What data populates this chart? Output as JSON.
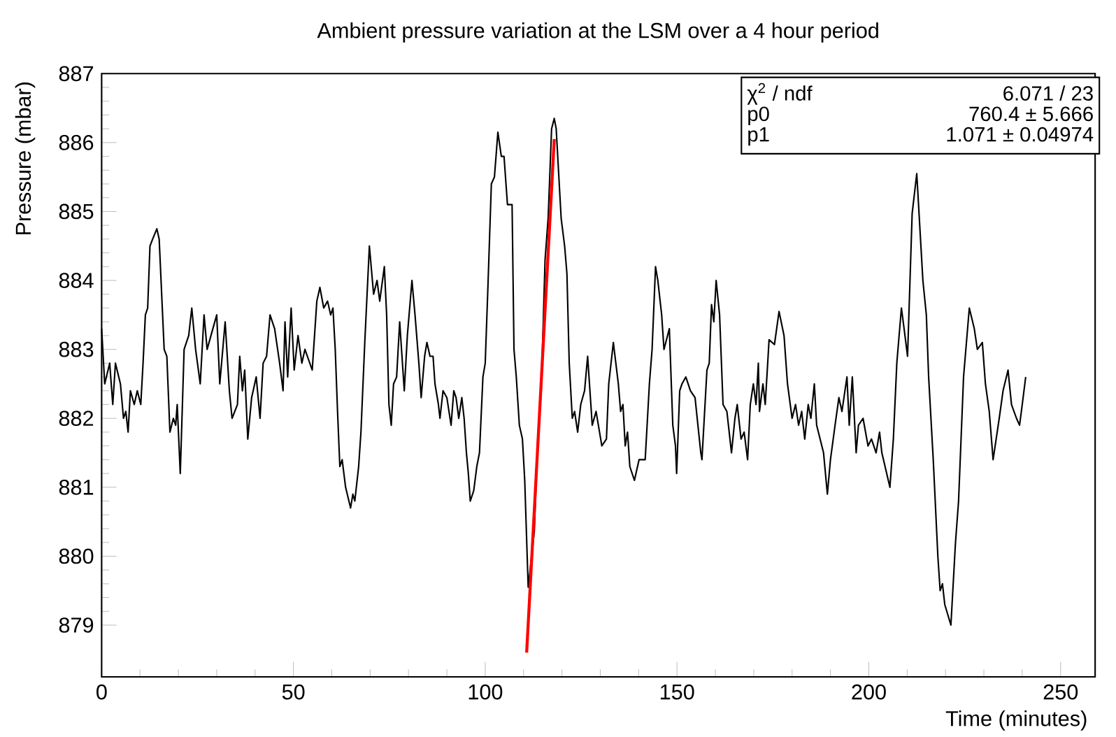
{
  "chart_data": {
    "type": "line",
    "title": "Ambient pressure variation at the LSM over a 4 hour period",
    "xlabel": "Time (minutes)",
    "ylabel": "Pressure (mbar)",
    "xlim": [
      0,
      259
    ],
    "ylim": [
      878.25,
      887
    ],
    "xticks": [
      0,
      50,
      100,
      150,
      200,
      250
    ],
    "yticks": [
      879,
      880,
      881,
      882,
      883,
      884,
      885,
      886,
      887
    ],
    "series": [
      {
        "color": "#000000",
        "x": [
          0.0,
          0.8,
          2.1,
          2.9,
          3.6,
          4.9,
          5.7,
          6.3,
          6.9,
          7.5,
          8.5,
          9.3,
          10.2,
          10.8,
          11.4,
          12.0,
          12.6,
          13.3,
          14.4,
          15.0,
          16.3,
          17.0,
          17.8,
          18.7,
          19.3,
          19.7,
          20.5,
          21.5,
          22.7,
          23.5,
          24.5,
          25.7,
          26.7,
          27.5,
          30.0,
          30.8,
          32.2,
          33.3,
          34.0,
          35.4,
          36.0,
          36.7,
          37.3,
          38.1,
          39.1,
          40.3,
          41.3,
          42.1,
          43.0,
          43.9,
          45.1,
          46.4,
          47.3,
          47.8,
          48.5,
          49.4,
          50.2,
          51.2,
          52.2,
          53.0,
          54.9,
          56.1,
          56.9,
          57.9,
          58.9,
          59.7,
          60.3,
          60.9,
          61.5,
          62.1,
          62.7,
          63.6,
          64.9,
          65.5,
          66.0,
          67.0,
          67.6,
          68.6,
          69.8,
          70.9,
          71.8,
          72.5,
          73.7,
          74.3,
          74.9,
          75.5,
          76.1,
          76.9,
          77.7,
          78.9,
          79.7,
          80.9,
          81.7,
          82.7,
          83.3,
          84.2,
          84.8,
          85.6,
          86.4,
          86.9,
          87.8,
          88.2,
          89.0,
          90.0,
          91.1,
          91.8,
          92.4,
          93.1,
          93.9,
          94.5,
          95.1,
          95.6,
          96.1,
          97.0,
          97.8,
          98.5,
          99.4,
          100.0,
          100.7,
          101.6,
          102.4,
          103.3,
          104.2,
          104.9,
          105.8,
          107.0,
          107.5,
          108.1,
          108.9,
          109.7,
          110.3,
          111.2,
          112.8,
          113.7,
          114.6,
          115.6,
          116.4,
          117.3,
          118.0,
          118.5,
          119.2,
          119.8,
          120.7,
          121.3,
          121.9,
          122.7,
          123.3,
          124.1,
          124.9,
          125.9,
          126.7,
          127.3,
          127.9,
          128.9,
          130.4,
          131.6,
          132.2,
          133.4,
          134.7,
          135.3,
          135.9,
          136.5,
          137.1,
          137.7,
          138.9,
          140.1,
          141.7,
          142.8,
          143.5,
          144.4,
          145.0,
          146.0,
          146.6,
          148.0,
          148.9,
          149.6,
          149.9,
          150.7,
          151.3,
          152.3,
          153.5,
          154.7,
          156.2,
          156.5,
          157.8,
          158.4,
          159.0,
          159.6,
          160.2,
          161.1,
          162.0,
          163.0,
          164.2,
          165.1,
          165.7,
          166.7,
          167.5,
          168.4,
          169.1,
          169.9,
          170.6,
          171.2,
          171.5,
          172.4,
          173.0,
          174.0,
          175.4,
          176.6,
          177.9,
          178.8,
          180.0,
          180.9,
          181.7,
          182.5,
          183.3,
          184.2,
          184.9,
          185.8,
          186.4,
          188.2,
          189.2,
          190.0,
          191.2,
          192.2,
          193.0,
          194.3,
          194.9,
          195.7,
          196.7,
          197.3,
          198.5,
          199.8,
          200.7,
          201.9,
          202.8,
          203.4,
          205.5,
          206.4,
          207.3,
          208.5,
          209.2,
          210.1,
          211.3,
          212.5,
          214.1,
          215.0,
          215.6,
          216.8,
          218.0,
          218.6,
          219.2,
          219.8,
          221.4,
          222.6,
          223.4,
          224.7,
          226.2,
          227.5,
          228.3,
          229.6,
          230.4,
          231.4,
          232.4,
          233.2,
          234.0,
          235.0,
          236.3,
          237.2,
          238.5,
          239.3,
          240.0,
          240.9
        ],
        "values": [
          883.3,
          882.5,
          882.8,
          882.2,
          882.8,
          882.5,
          882.0,
          882.1,
          881.8,
          882.4,
          882.2,
          882.4,
          882.2,
          882.8,
          883.5,
          883.6,
          884.5,
          884.6,
          884.75,
          884.6,
          883.0,
          882.9,
          881.8,
          882.0,
          881.9,
          882.2,
          881.2,
          883.0,
          883.2,
          883.6,
          883.0,
          882.5,
          883.5,
          883.0,
          883.5,
          882.5,
          883.4,
          882.4,
          882.0,
          882.2,
          882.9,
          882.4,
          882.7,
          881.7,
          882.3,
          882.6,
          882.0,
          882.8,
          882.9,
          883.5,
          883.3,
          882.8,
          882.4,
          883.4,
          882.6,
          883.6,
          882.7,
          883.2,
          882.8,
          883.0,
          882.7,
          883.7,
          883.9,
          883.6,
          883.7,
          883.5,
          883.6,
          883.0,
          882.1,
          881.3,
          881.4,
          881.0,
          880.7,
          880.9,
          880.8,
          881.3,
          881.8,
          883.1,
          884.5,
          883.8,
          884.0,
          883.7,
          884.2,
          883.5,
          882.2,
          881.9,
          882.5,
          882.6,
          883.4,
          882.4,
          883.2,
          884.0,
          883.5,
          882.8,
          882.3,
          882.9,
          883.1,
          882.9,
          882.9,
          882.5,
          882.2,
          882.0,
          882.4,
          882.3,
          881.9,
          882.4,
          882.3,
          882.0,
          882.3,
          882.0,
          881.5,
          881.2,
          880.8,
          880.95,
          881.3,
          881.5,
          882.6,
          882.8,
          883.9,
          885.4,
          885.5,
          886.15,
          885.8,
          885.8,
          885.1,
          885.1,
          883.0,
          882.6,
          881.9,
          881.7,
          881.1,
          879.55,
          880.36,
          881.7,
          882.4,
          884.3,
          884.9,
          886.2,
          886.35,
          886.2,
          885.5,
          884.9,
          884.5,
          884.1,
          882.8,
          882.0,
          882.1,
          881.8,
          882.2,
          882.4,
          882.9,
          882.4,
          881.9,
          882.1,
          881.6,
          881.7,
          882.5,
          883.1,
          882.5,
          882.1,
          882.2,
          881.6,
          881.8,
          881.3,
          881.1,
          881.4,
          881.4,
          882.5,
          883.0,
          884.2,
          884.0,
          883.5,
          883.0,
          883.3,
          881.9,
          881.6,
          881.2,
          882.4,
          882.5,
          882.6,
          882.4,
          882.3,
          881.5,
          881.4,
          882.7,
          882.8,
          883.65,
          883.4,
          884.0,
          883.5,
          882.2,
          882.1,
          881.5,
          882.0,
          882.2,
          881.7,
          881.8,
          881.4,
          882.2,
          882.5,
          882.2,
          882.8,
          882.1,
          882.5,
          882.2,
          883.14,
          883.07,
          883.55,
          883.2,
          882.5,
          882.0,
          882.2,
          881.9,
          882.1,
          881.7,
          882.2,
          882.0,
          882.5,
          881.9,
          881.5,
          880.9,
          881.4,
          881.9,
          882.3,
          882.1,
          882.6,
          881.9,
          882.6,
          881.5,
          881.9,
          882.0,
          881.6,
          881.7,
          881.5,
          881.8,
          881.5,
          881.0,
          881.7,
          882.8,
          883.6,
          883.3,
          882.9,
          884.97,
          885.55,
          884.0,
          883.5,
          882.6,
          881.4,
          880.0,
          879.5,
          879.6,
          879.3,
          879.0,
          880.2,
          880.8,
          882.6,
          883.6,
          883.3,
          883.0,
          883.1,
          882.5,
          882.1,
          881.4,
          881.7,
          882.0,
          882.4,
          882.7,
          882.2,
          882.0,
          881.9,
          882.2,
          882.6
        ]
      },
      {
        "color": "#ff0000",
        "x": [
          110.8,
          118.0
        ],
        "values": [
          878.6,
          886.05
        ]
      }
    ],
    "annotations": [
      "χ$^{2}$ / ndf",
      "6.071 / 23",
      "p0",
      "760.4 ± 5.666",
      "p1",
      "1.071 ± 0.04974"
    ]
  }
}
